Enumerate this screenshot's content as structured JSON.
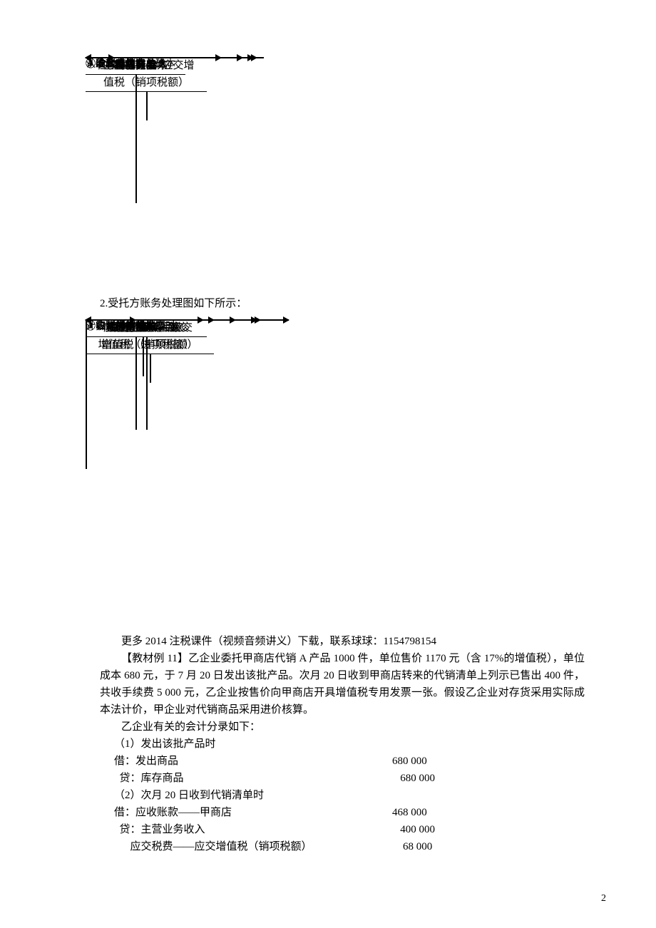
{
  "diagram1": {
    "accounts": {
      "zyywsr": "主营业务收入",
      "yszk": "应收账款",
      "yhck": "银行存款",
      "yjsf": "应交税费——应交增\n值税（销项税额）",
      "xsfy": "销售费用",
      "kcsp": "库存商品",
      "fcsp": "发出商品",
      "zyywcb": "主营业务成本"
    },
    "labels": {
      "l1": "②收到代销清单确",
      "l1b": "认收入",
      "l4": "④确认手续费",
      "l5": "⑤收款",
      "l2": "①发出商品",
      "l3": "③结转已售商品成本"
    }
  },
  "section2_label": "2.受托方账务处理图如下所示：",
  "diagram2": {
    "accounts": {
      "yhck": "银行存款",
      "yfzk": "应付账款",
      "yjsf_in": "应交税费——应交\n增值税（进项税额）",
      "qtywsr": "其他业务收入等",
      "stdxspk": "受托代销商品款",
      "yhckd": "银行存款等",
      "stdxsp": "受托代销商品",
      "yjsf_out": "应交税费——应交\n增值税（销项税额）"
    },
    "labels": {
      "l1": "①收到代销商品",
      "l2": "②实际销售代销商",
      "l3a": "③收到增值税发票时",
      "l3b": "③收到增值税发票时",
      "l4": "④归还货款并",
      "l4b": "计算代销手续"
    }
  },
  "text": {
    "p1": "更多 2014 注税课件（视频音频讲义）下载，联系球球：1154798154",
    "p2": "【教材例 11】乙企业委托甲商店代销 A 产品 1000 件，单位售价 1170 元（含 17%的增值税），单位成本 680 元，于 7 月 20 日发出该批产品。次月 20 日收到甲商店转来的代销清单上列示已售出 400 件，共收手续费 5 000 元，乙企业按售价向甲商店开具增值税专用发票一张。假设乙企业对存货采用实际成本法计价，甲企业对代销商品采用进价核算。",
    "p3": "乙企业有关的会计分录如下："
  },
  "entries": [
    {
      "line": "（1）发出该批产品时"
    },
    {
      "desc": "借：发出商品",
      "amt": "680 000"
    },
    {
      "desc": "  贷：库存商品",
      "amt": "   680 000"
    },
    {
      "line": "（2）次月 20 日收到代销清单时"
    },
    {
      "desc": "借：应收账款——甲商店",
      "amt": "468 000"
    },
    {
      "desc": "  贷：主营业务收入",
      "amt": "   400 000"
    },
    {
      "desc": "      应交税费——应交增值税（销项税额）",
      "amt": "    68 000"
    }
  ],
  "page_num": "2"
}
